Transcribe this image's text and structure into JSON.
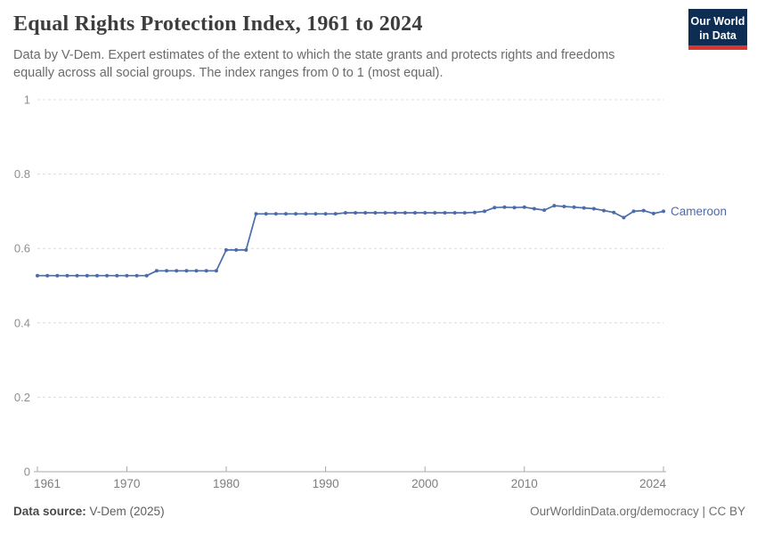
{
  "header": {
    "title": "Equal Rights Protection Index, 1961 to 2024",
    "subtitle_line1": "Data by V-Dem. Expert estimates of the extent to which the state grants and protects rights and freedoms",
    "subtitle_line2": "equally across all social groups. The index ranges from 0 to 1 (most equal).",
    "logo_line1": "Our World",
    "logo_line2": "in Data"
  },
  "colors": {
    "line_blue": "#4a6cab",
    "logo_navy": "#0d2d52",
    "logo_red": "#d7352e",
    "grid_gray": "#dcdcdc",
    "axis_gray": "#a8a8a8"
  },
  "chart_data": {
    "type": "line",
    "title": "Equal Rights Protection Index, 1961 to 2024",
    "xlabel": "",
    "ylabel": "",
    "xlim": [
      1961,
      2024
    ],
    "ylim": [
      0,
      1
    ],
    "yticks": [
      0,
      0.2,
      0.4,
      0.6,
      0.8,
      1
    ],
    "ytick_labels": [
      "0",
      "0.2",
      "0.4",
      "0.6",
      "0.8",
      "1"
    ],
    "xticks": [
      1961,
      1970,
      1980,
      1990,
      2000,
      2010,
      2024
    ],
    "grid": "horizontal-dashed",
    "legend_position": "end-of-line-label",
    "series": [
      {
        "name": "Cameroon",
        "color": "#4a6cab",
        "x": [
          1961,
          1962,
          1963,
          1964,
          1965,
          1966,
          1967,
          1968,
          1969,
          1970,
          1971,
          1972,
          1973,
          1974,
          1975,
          1976,
          1977,
          1978,
          1979,
          1980,
          1981,
          1982,
          1983,
          1984,
          1985,
          1986,
          1987,
          1988,
          1989,
          1990,
          1991,
          1992,
          1993,
          1994,
          1995,
          1996,
          1997,
          1998,
          1999,
          2000,
          2001,
          2002,
          2003,
          2004,
          2005,
          2006,
          2007,
          2008,
          2009,
          2010,
          2011,
          2012,
          2013,
          2014,
          2015,
          2016,
          2017,
          2018,
          2019,
          2020,
          2021,
          2022,
          2023,
          2024
        ],
        "values": [
          0.527,
          0.527,
          0.527,
          0.527,
          0.527,
          0.527,
          0.527,
          0.527,
          0.527,
          0.527,
          0.527,
          0.527,
          0.54,
          0.54,
          0.54,
          0.54,
          0.54,
          0.54,
          0.54,
          0.596,
          0.596,
          0.596,
          0.693,
          0.693,
          0.693,
          0.693,
          0.693,
          0.693,
          0.693,
          0.693,
          0.693,
          0.696,
          0.696,
          0.696,
          0.696,
          0.696,
          0.696,
          0.696,
          0.696,
          0.696,
          0.696,
          0.696,
          0.696,
          0.696,
          0.697,
          0.7,
          0.71,
          0.711,
          0.71,
          0.711,
          0.707,
          0.703,
          0.715,
          0.713,
          0.711,
          0.709,
          0.707,
          0.702,
          0.697,
          0.683,
          0.7,
          0.702,
          0.694,
          0.7
        ]
      }
    ]
  },
  "footer": {
    "source_label": "Data source:",
    "source_value": " V-Dem (2025)",
    "credit": "OurWorldinData.org/democracy | CC BY"
  }
}
